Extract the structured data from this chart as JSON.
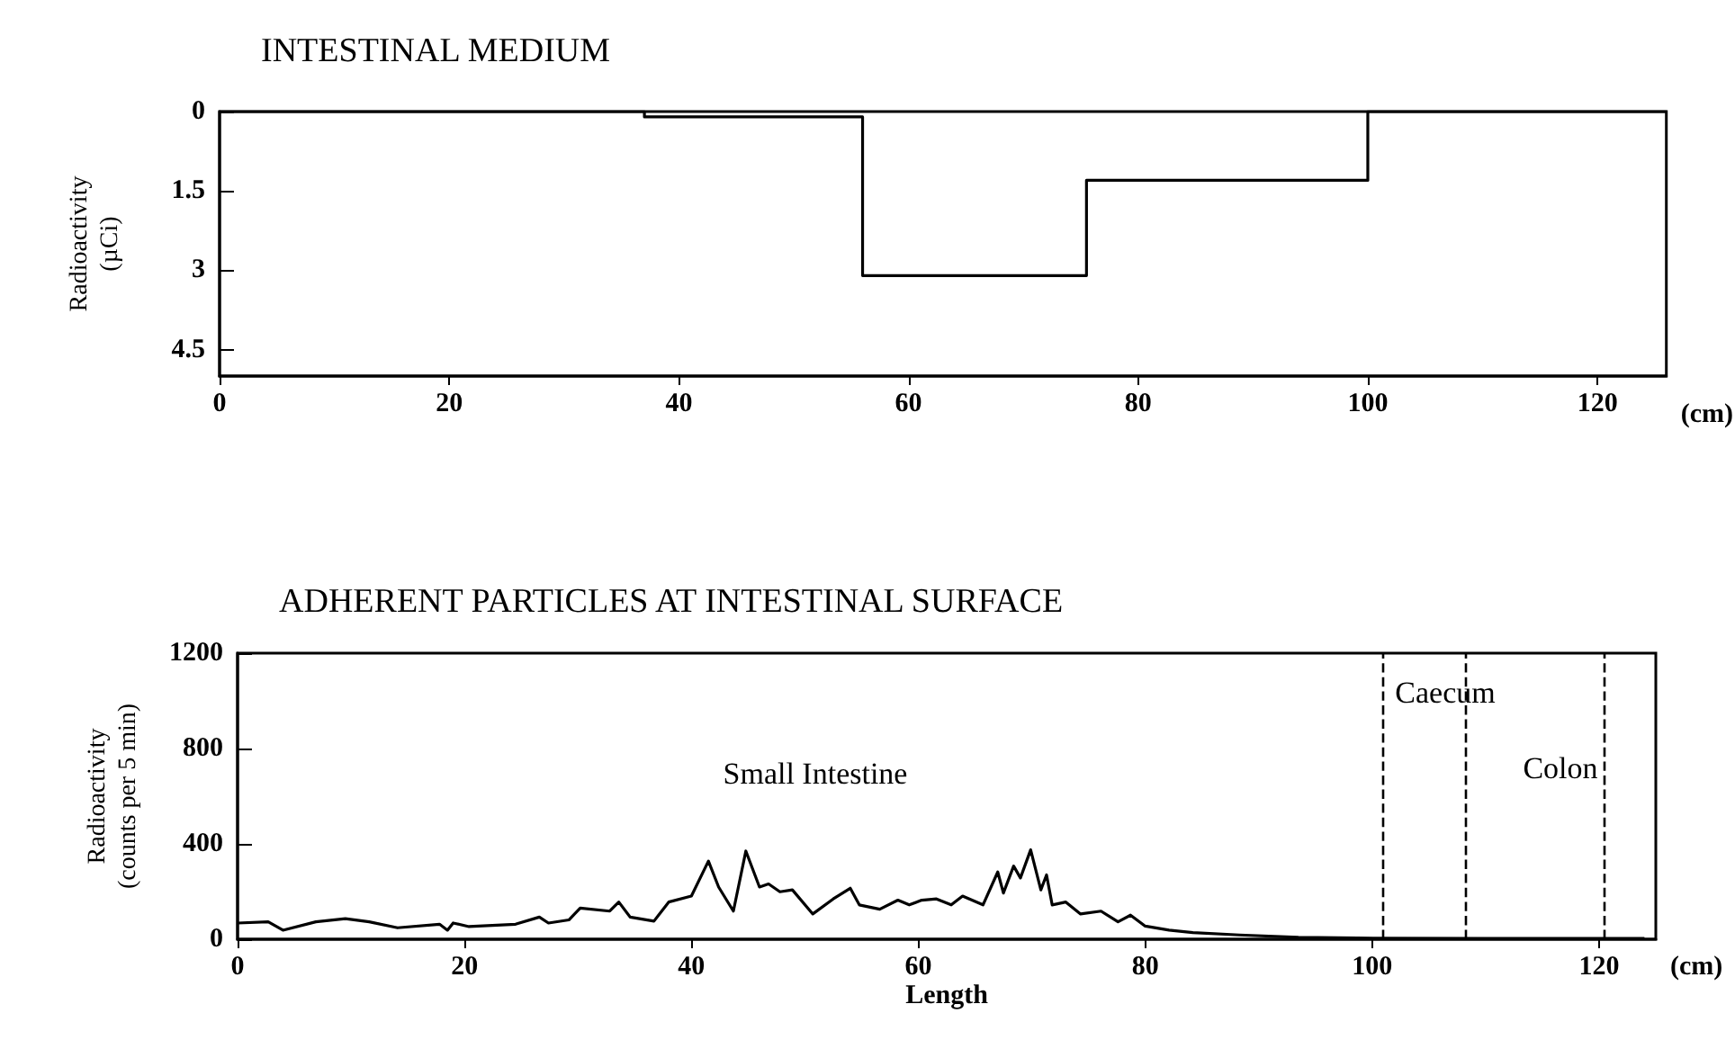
{
  "chart_data": [
    {
      "type": "step",
      "title": "INTESTINAL MEDIUM",
      "ylabel": "Radioactivity\n(µCi)",
      "xlabel": "(cm)",
      "x": [
        0,
        37,
        56,
        75.5,
        100,
        126
      ],
      "values": [
        0,
        0.1,
        3.1,
        1.3,
        0,
        0
      ],
      "color": "#000000",
      "xlim": [
        0,
        126
      ],
      "xticks": [
        0,
        20,
        40,
        60,
        80,
        100,
        120
      ],
      "ylim": [
        5,
        0
      ],
      "yticks": [
        0,
        1.5,
        3,
        4.5
      ],
      "grid": false,
      "marker": "none",
      "line_style": "solid"
    },
    {
      "type": "line",
      "title": "ADHERENT PARTICLES AT INTESTINAL SURFACE",
      "ylabel": "Radioactivity\n(counts per 5 min)",
      "xlabel": "Length",
      "annotations": [
        "(cm)",
        "Small Intestine",
        "Caecum",
        "Colon"
      ],
      "x": [
        0,
        2.7,
        4,
        6.9,
        9.5,
        11.6,
        14.1,
        17.8,
        18.5,
        19,
        20.4,
        24.5,
        26.6,
        27.4,
        29.2,
        30.2,
        32.8,
        33.6,
        34.6,
        36.7,
        38,
        40,
        41.5,
        42.4,
        43.7,
        44.8,
        46,
        46.8,
        47.8,
        48.9,
        50.7,
        52.5,
        54,
        54.8,
        56.6,
        58.2,
        59.2,
        60.3,
        61.6,
        62.9,
        63.9,
        65.7,
        67,
        67.5,
        68.4,
        69,
        69.9,
        70.8,
        71.3,
        71.8,
        73,
        74.3,
        76.1,
        77.6,
        78.7,
        80,
        82.1,
        84.2,
        88.3,
        93.5,
        98.7,
        110,
        124
      ],
      "values": [
        68,
        73,
        38,
        73,
        86,
        73,
        48,
        63,
        38,
        68,
        53,
        63,
        93,
        68,
        81,
        131,
        118,
        156,
        93,
        76,
        156,
        181,
        328,
        219,
        118,
        370,
        219,
        232,
        199,
        207,
        106,
        169,
        214,
        144,
        126,
        164,
        144,
        164,
        169,
        144,
        181,
        144,
        282,
        194,
        307,
        257,
        375,
        207,
        270,
        144,
        156,
        106,
        118,
        73,
        101,
        55,
        38,
        28,
        18,
        8,
        5,
        3,
        3
      ],
      "color": "#000000",
      "xlim": [
        0,
        125
      ],
      "xticks": [
        0,
        20,
        40,
        60,
        80,
        100,
        120
      ],
      "ylim": [
        0,
        1200
      ],
      "yticks": [
        0,
        400,
        800,
        1200
      ],
      "grid": false,
      "marker": "none",
      "line_style": "solid",
      "ref_lines": [
        {
          "axis": "x",
          "value": 101,
          "line_style": "dashed",
          "color": "#000000"
        },
        {
          "axis": "x",
          "value": 108.2,
          "line_style": "dashed",
          "color": "#000000"
        },
        {
          "axis": "x",
          "value": 120.5,
          "line_style": "dashed",
          "color": "#000000"
        }
      ]
    }
  ]
}
